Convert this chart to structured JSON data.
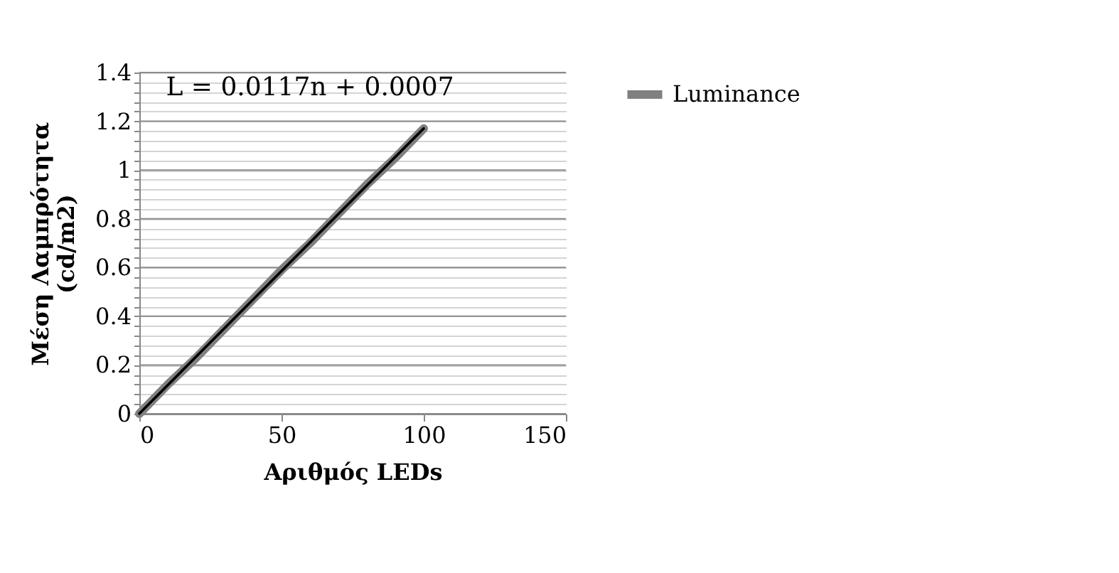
{
  "chart_data": {
    "type": "line",
    "xlabel": "Αριθμός LEDs",
    "ylabel": "Μέση Λαμπρότητα (cd/m2)",
    "annotations": [
      "L = 0.0117n + 0.0007"
    ],
    "series": [
      {
        "name": "Luminance",
        "color": "#808080",
        "x": [
          0,
          10,
          20,
          30,
          40,
          50,
          60,
          70,
          80,
          90,
          100
        ],
        "values": [
          0,
          0.12,
          0.23,
          0.35,
          0.47,
          0.59,
          0.7,
          0.82,
          0.94,
          1.05,
          1.17
        ]
      },
      {
        "type": "line",
        "color": "#000000",
        "x": [
          0,
          100
        ],
        "values": [
          0.0007,
          1.1707
        ]
      }
    ],
    "xlim": [
      0,
      150
    ],
    "xticks": [
      0,
      50,
      100,
      150
    ],
    "ylim": [
      0,
      1.4
    ],
    "yticks": [
      0,
      {
        "value": 0.04,
        "label": null
      },
      {
        "value": 0.08,
        "label": null
      },
      {
        "value": 0.12,
        "label": null
      },
      {
        "value": 0.16,
        "label": null
      },
      0.2,
      {
        "value": 0.24,
        "label": null
      },
      {
        "value": 0.28,
        "label": null
      },
      {
        "value": 0.32,
        "label": null
      },
      {
        "value": 0.36,
        "label": null
      },
      0.4,
      {
        "value": 0.44,
        "label": null
      },
      {
        "value": 0.48,
        "label": null
      },
      {
        "value": 0.52,
        "label": null
      },
      {
        "value": 0.56,
        "label": null
      },
      0.6,
      {
        "value": 0.64,
        "label": null
      },
      {
        "value": 0.68,
        "label": null
      },
      {
        "value": 0.72,
        "label": null
      },
      {
        "value": 0.76,
        "label": null
      },
      0.8,
      {
        "value": 0.84,
        "label": null
      },
      {
        "value": 0.88,
        "label": null
      },
      {
        "value": 0.92,
        "label": null
      },
      {
        "value": 0.96,
        "label": null
      },
      1,
      {
        "value": 1.04,
        "label": null
      },
      {
        "value": 1.08,
        "label": null
      },
      {
        "value": 1.12,
        "label": null
      },
      {
        "value": 1.16,
        "label": null
      },
      1.2,
      {
        "value": 1.24,
        "label": null
      },
      {
        "value": 1.28,
        "label": null
      },
      {
        "value": 1.32,
        "label": null
      },
      {
        "value": 1.36,
        "label": null
      },
      1.4
    ],
    "grid": "y",
    "legend": "right",
    "marker": "none",
    "line_style": "solid"
  }
}
